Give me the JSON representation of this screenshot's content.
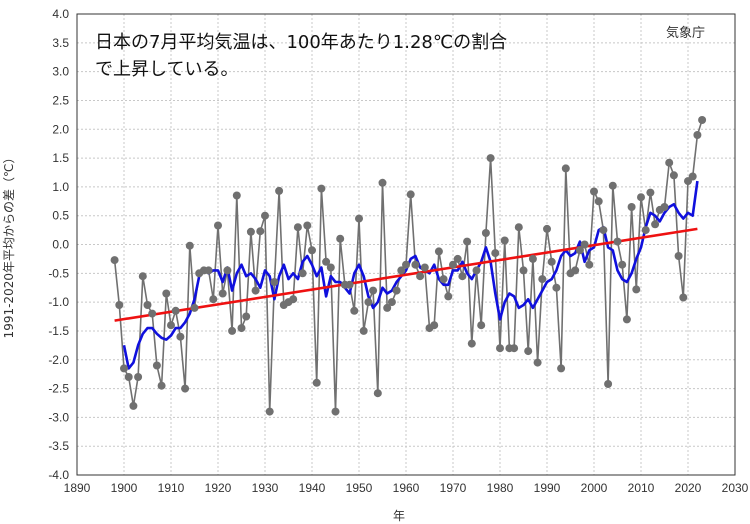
{
  "chart_data": {
    "type": "line",
    "title": "",
    "annotation_line1": "日本の7月平均気温は、100年あたり1.28℃の割合",
    "annotation_line2": "で上昇している。",
    "credit": "気象庁",
    "xlabel": "年",
    "ylabel": "1991-2020年平均からの差（℃）",
    "xlim": [
      1890,
      2030
    ],
    "ylim": [
      -4.0,
      4.0
    ],
    "xticks": [
      1890,
      1900,
      1910,
      1920,
      1930,
      1940,
      1950,
      1960,
      1970,
      1980,
      1990,
      2000,
      2010,
      2020,
      2030
    ],
    "xtick_labels": [
      "1890",
      "1900",
      "1910",
      "1920",
      "1930",
      "1940",
      "1950",
      "1960",
      "1970",
      "1980",
      "1990",
      "2000",
      "2010",
      "2020",
      "2030"
    ],
    "yticks": [
      -4.0,
      -3.5,
      -3.0,
      -2.5,
      -2.0,
      -1.5,
      -1.0,
      -0.5,
      0.0,
      0.5,
      1.0,
      1.5,
      2.0,
      2.5,
      3.0,
      3.5,
      4.0
    ],
    "ytick_labels": [
      "-4.0",
      "-3.5",
      "-3.0",
      "-2.5",
      "-2.0",
      "-1.5",
      "-1.0",
      "-0.5",
      "0.0",
      "0.5",
      "1.0",
      "1.5",
      "2.0",
      "2.5",
      "3.0",
      "3.5",
      "4.0"
    ],
    "grid": true,
    "colors": {
      "annual": "#707070",
      "marker": "#707070",
      "moving_average": "#1010dd",
      "trend": "#ee1111"
    },
    "series": [
      {
        "kind": "annual",
        "x": [
          1898,
          1899,
          1900,
          1901,
          1902,
          1903,
          1904,
          1905,
          1906,
          1907,
          1908,
          1909,
          1910,
          1911,
          1912,
          1913,
          1914,
          1915,
          1916,
          1917,
          1918,
          1919,
          1920,
          1921,
          1922,
          1923,
          1924,
          1925,
          1926,
          1927,
          1928,
          1929,
          1930,
          1931,
          1932,
          1933,
          1934,
          1935,
          1936,
          1937,
          1938,
          1939,
          1940,
          1941,
          1942,
          1943,
          1944,
          1945,
          1946,
          1947,
          1948,
          1949,
          1950,
          1951,
          1952,
          1953,
          1954,
          1955,
          1956,
          1957,
          1958,
          1959,
          1960,
          1961,
          1962,
          1963,
          1964,
          1965,
          1966,
          1967,
          1968,
          1969,
          1970,
          1971,
          1972,
          1973,
          1974,
          1975,
          1976,
          1977,
          1978,
          1979,
          1980,
          1981,
          1982,
          1983,
          1984,
          1985,
          1986,
          1987,
          1988,
          1989,
          1990,
          1991,
          1992,
          1993,
          1994,
          1995,
          1996,
          1997,
          1998,
          1999,
          2000,
          2001,
          2002,
          2003,
          2004,
          2005,
          2006,
          2007,
          2008,
          2009,
          2010,
          2011,
          2012,
          2013,
          2014,
          2015,
          2016,
          2017,
          2018,
          2019,
          2020,
          2021,
          2022,
          2023
        ],
        "values": [
          -0.27,
          -1.05,
          -2.15,
          -2.3,
          -2.8,
          -2.3,
          -0.55,
          -1.05,
          -1.2,
          -2.1,
          -2.45,
          -0.85,
          -1.4,
          -1.15,
          -1.6,
          -2.5,
          -0.02,
          -1.1,
          -0.5,
          -0.45,
          -0.45,
          -0.95,
          0.33,
          -0.85,
          -0.45,
          -1.5,
          0.85,
          -1.45,
          -1.25,
          0.22,
          -0.8,
          0.23,
          0.5,
          -2.9,
          -0.65,
          0.93,
          -1.05,
          -1.0,
          -0.95,
          0.3,
          -0.5,
          0.33,
          -0.1,
          -2.4,
          0.97,
          -0.3,
          -0.4,
          -2.9,
          0.1,
          -0.7,
          -0.7,
          -1.15,
          0.45,
          -1.5,
          -1.0,
          -0.8,
          -2.58,
          1.07,
          -1.1,
          -1.0,
          -0.8,
          -0.45,
          -0.35,
          0.87,
          -0.35,
          -0.55,
          -0.4,
          -1.45,
          -1.4,
          -0.12,
          -0.6,
          -0.9,
          -0.35,
          -0.25,
          -0.55,
          0.05,
          -1.72,
          -0.45,
          -1.4,
          0.2,
          1.5,
          -0.15,
          -1.8,
          0.07,
          -1.8,
          -1.8,
          0.3,
          -0.45,
          -1.85,
          -0.25,
          -2.05,
          -0.6,
          0.27,
          -0.3,
          -0.75,
          -2.15,
          1.32,
          -0.5,
          -0.45,
          -0.1,
          0.0,
          -0.35,
          0.92,
          0.75,
          0.25,
          -2.42,
          1.02,
          0.05,
          -0.35,
          -1.3,
          0.65,
          -0.78,
          0.82,
          0.25,
          0.9,
          0.35,
          0.6,
          0.65,
          1.42,
          1.2,
          -0.2,
          -0.92,
          1.1,
          1.18,
          1.9,
          2.16
        ]
      },
      {
        "kind": "moving_average",
        "x": [
          1900,
          1901,
          1902,
          1903,
          1904,
          1905,
          1906,
          1907,
          1908,
          1909,
          1910,
          1911,
          1912,
          1913,
          1914,
          1915,
          1916,
          1917,
          1918,
          1919,
          1920,
          1921,
          1922,
          1923,
          1924,
          1925,
          1926,
          1927,
          1928,
          1929,
          1930,
          1931,
          1932,
          1933,
          1934,
          1935,
          1936,
          1937,
          1938,
          1939,
          1940,
          1941,
          1942,
          1943,
          1944,
          1945,
          1946,
          1947,
          1948,
          1949,
          1950,
          1951,
          1952,
          1953,
          1954,
          1955,
          1956,
          1957,
          1958,
          1959,
          1960,
          1961,
          1962,
          1963,
          1964,
          1965,
          1966,
          1967,
          1968,
          1969,
          1970,
          1971,
          1972,
          1973,
          1974,
          1975,
          1976,
          1977,
          1978,
          1979,
          1980,
          1981,
          1982,
          1983,
          1984,
          1985,
          1986,
          1987,
          1988,
          1989,
          1990,
          1991,
          1992,
          1993,
          1994,
          1995,
          1996,
          1997,
          1998,
          1999,
          2000,
          2001,
          2002,
          2003,
          2004,
          2005,
          2006,
          2007,
          2008,
          2009,
          2010,
          2011,
          2012,
          2013,
          2014,
          2015,
          2016,
          2017,
          2018,
          2019,
          2020,
          2021,
          2022
        ],
        "values": [
          -1.75,
          -2.15,
          -2.05,
          -1.75,
          -1.55,
          -1.45,
          -1.45,
          -1.55,
          -1.62,
          -1.65,
          -1.58,
          -1.45,
          -1.45,
          -1.35,
          -1.2,
          -0.95,
          -0.55,
          -0.42,
          -0.5,
          -0.45,
          -0.45,
          -0.65,
          -0.4,
          -0.8,
          -0.5,
          -0.35,
          -0.55,
          -0.5,
          -0.6,
          -0.75,
          -0.45,
          -0.55,
          -0.95,
          -0.55,
          -0.35,
          -0.6,
          -0.5,
          -0.6,
          -0.3,
          -0.2,
          -0.35,
          -0.55,
          -0.4,
          -0.9,
          -0.55,
          -0.65,
          -0.65,
          -0.75,
          -0.85,
          -0.5,
          -0.35,
          -0.55,
          -0.9,
          -1.1,
          -1.0,
          -0.75,
          -0.85,
          -0.8,
          -0.65,
          -0.55,
          -0.45,
          -0.25,
          -0.2,
          -0.4,
          -0.45,
          -0.5,
          -0.35,
          -0.6,
          -0.7,
          -0.7,
          -0.45,
          -0.45,
          -0.3,
          -0.5,
          -0.6,
          -0.45,
          -0.3,
          -0.05,
          -0.3,
          -0.85,
          -1.3,
          -1.0,
          -0.85,
          -0.9,
          -1.1,
          -1.05,
          -0.95,
          -1.1,
          -0.95,
          -0.8,
          -0.65,
          -0.6,
          -0.45,
          -0.2,
          -0.1,
          -0.2,
          -0.15,
          0.05,
          -0.3,
          -0.1,
          -0.05,
          0.25,
          0.3,
          -0.05,
          -0.1,
          -0.45,
          -0.6,
          -0.65,
          -0.5,
          -0.25,
          -0.05,
          0.3,
          0.55,
          0.5,
          0.4,
          0.55,
          0.65,
          0.7,
          0.55,
          0.45,
          0.55,
          0.5,
          1.1
        ]
      },
      {
        "kind": "trend",
        "x": [
          1898,
          2022
        ],
        "values": [
          -1.32,
          0.27
        ]
      }
    ]
  }
}
